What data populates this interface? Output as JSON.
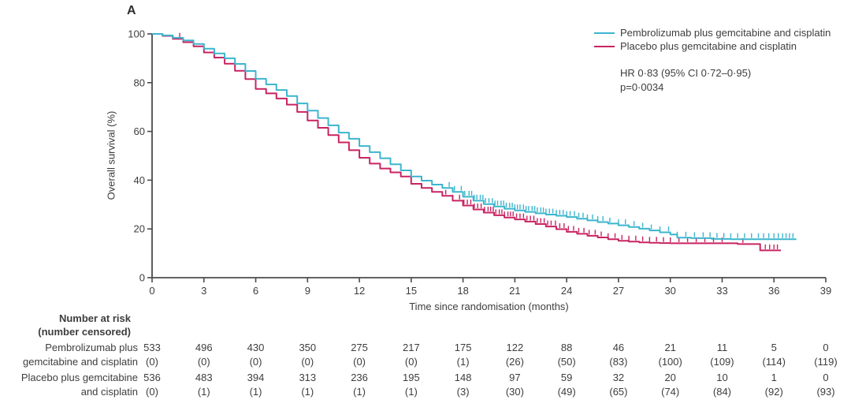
{
  "figure": {
    "panel_label": "A"
  },
  "chart_data": {
    "type": "line",
    "subtype": "kaplan-meier-step",
    "title": "",
    "xlabel": "Time since randomisation (months)",
    "ylabel": "Overall survival (%)",
    "xlim": [
      0,
      39
    ],
    "ylim": [
      0,
      100
    ],
    "xticks": [
      0,
      3,
      6,
      9,
      12,
      15,
      18,
      21,
      24,
      27,
      30,
      33,
      36,
      39
    ],
    "yticks": [
      0,
      20,
      40,
      60,
      80,
      100
    ],
    "grid": false,
    "legend_position": "top-right",
    "annotation": {
      "hr_text": "HR 0·83 (95% CI 0·72–0·95)",
      "p_text": "p=0·0034"
    },
    "series": [
      {
        "id": "pembrolizumab",
        "name": "Pembrolizumab plus gemcitabine and cisplatin",
        "color": "#3cb5ce",
        "points": [
          [
            0,
            100
          ],
          [
            0.6,
            99.4
          ],
          [
            1.2,
            98.4
          ],
          [
            1.8,
            97.3
          ],
          [
            2.4,
            95.9
          ],
          [
            3,
            93.9
          ],
          [
            3.6,
            92
          ],
          [
            4.2,
            90
          ],
          [
            4.8,
            87.7
          ],
          [
            5.4,
            84.8
          ],
          [
            6,
            81.6
          ],
          [
            6.6,
            79.3
          ],
          [
            7.2,
            77
          ],
          [
            7.8,
            74.5
          ],
          [
            8.4,
            71.5
          ],
          [
            9,
            68.5
          ],
          [
            9.6,
            65.5
          ],
          [
            10.2,
            62.5
          ],
          [
            10.8,
            59.5
          ],
          [
            11.4,
            57
          ],
          [
            12,
            54
          ],
          [
            12.6,
            51.5
          ],
          [
            13.2,
            49
          ],
          [
            13.8,
            46.5
          ],
          [
            14.4,
            44
          ],
          [
            15,
            41.5
          ],
          [
            15.6,
            39.8
          ],
          [
            16.2,
            38.2
          ],
          [
            16.8,
            36.8
          ],
          [
            17.4,
            35.2
          ],
          [
            18,
            33.2
          ],
          [
            18.6,
            31.6
          ],
          [
            19.2,
            30.2
          ],
          [
            19.8,
            29.2
          ],
          [
            20.4,
            28.3
          ],
          [
            21,
            27.6
          ],
          [
            21.6,
            27
          ],
          [
            22.2,
            26.4
          ],
          [
            22.8,
            25.9
          ],
          [
            23.4,
            25.4
          ],
          [
            24,
            24.9
          ],
          [
            24.6,
            24.2
          ],
          [
            25.2,
            23.5
          ],
          [
            25.8,
            22.8
          ],
          [
            26.4,
            22.2
          ],
          [
            27,
            21.5
          ],
          [
            27.6,
            20.8
          ],
          [
            28.2,
            20.1
          ],
          [
            28.8,
            19.4
          ],
          [
            29.4,
            18.6
          ],
          [
            30,
            17.7
          ],
          [
            30.4,
            16.4
          ],
          [
            31.2,
            16.2
          ],
          [
            32.4,
            15.9
          ],
          [
            33.5,
            15.8
          ],
          [
            37.3,
            15.8
          ]
        ],
        "censor_marks": [
          17.2,
          17.5,
          17.9,
          18.1,
          18.35,
          18.5,
          18.65,
          18.8,
          19.0,
          19.15,
          19.3,
          19.5,
          19.7,
          19.85,
          20.0,
          20.2,
          20.35,
          20.5,
          20.7,
          20.85,
          21.0,
          21.15,
          21.3,
          21.5,
          21.65,
          21.8,
          22.0,
          22.15,
          22.3,
          22.5,
          22.65,
          22.8,
          23.0,
          23.2,
          23.4,
          23.6,
          23.8,
          24.0,
          24.2,
          24.45,
          24.7,
          24.95,
          25.2,
          25.5,
          25.8,
          26.1,
          26.5,
          27.0,
          27.4,
          27.9,
          28.4,
          28.9,
          29.4,
          29.9,
          30.4,
          30.9,
          31.4,
          31.9,
          32.3,
          32.7,
          33.1,
          33.5,
          33.9,
          34.3,
          34.7,
          35.1,
          35.4,
          35.7,
          36.0,
          36.25,
          36.5,
          36.7,
          36.9,
          37.1
        ]
      },
      {
        "id": "placebo",
        "name": "Placebo plus gemcitabine and cisplatin",
        "color": "#c92361",
        "points": [
          [
            0,
            100
          ],
          [
            0.6,
            99.2
          ],
          [
            1.2,
            98
          ],
          [
            1.8,
            96.6
          ],
          [
            2.4,
            94.9
          ],
          [
            3,
            92.4
          ],
          [
            3.6,
            90.3
          ],
          [
            4.2,
            87.8
          ],
          [
            4.8,
            84.9
          ],
          [
            5.4,
            81.5
          ],
          [
            6,
            77.4
          ],
          [
            6.6,
            75.6
          ],
          [
            7.2,
            73.5
          ],
          [
            7.8,
            71
          ],
          [
            8.4,
            68
          ],
          [
            9,
            64.5
          ],
          [
            9.6,
            61.5
          ],
          [
            10.2,
            58.5
          ],
          [
            10.8,
            55.5
          ],
          [
            11.4,
            52.3
          ],
          [
            12,
            49.2
          ],
          [
            12.6,
            46.8
          ],
          [
            13.2,
            44.8
          ],
          [
            13.8,
            43.2
          ],
          [
            14.4,
            41.5
          ],
          [
            15,
            38.5
          ],
          [
            15.6,
            36.8
          ],
          [
            16.2,
            35.2
          ],
          [
            16.8,
            33.6
          ],
          [
            17.4,
            31.6
          ],
          [
            18,
            29.6
          ],
          [
            18.6,
            28
          ],
          [
            19.2,
            26.7
          ],
          [
            19.8,
            25.6
          ],
          [
            20.4,
            24.7
          ],
          [
            21,
            23.9
          ],
          [
            21.6,
            23
          ],
          [
            22.2,
            22
          ],
          [
            22.8,
            21
          ],
          [
            23.4,
            19.9
          ],
          [
            24,
            18.8
          ],
          [
            24.6,
            18
          ],
          [
            25.2,
            17.2
          ],
          [
            25.8,
            16.5
          ],
          [
            26.4,
            15.8
          ],
          [
            27,
            15.1
          ],
          [
            27.6,
            14.8
          ],
          [
            28.2,
            14.5
          ],
          [
            28.8,
            14.3
          ],
          [
            29.4,
            14.2
          ],
          [
            30,
            14.1
          ],
          [
            31.5,
            14.1
          ],
          [
            33.9,
            13.8
          ],
          [
            35.2,
            11.2
          ],
          [
            36.4,
            11.2
          ]
        ],
        "censor_marks": [
          1.6,
          17.0,
          17.4,
          17.8,
          18.05,
          18.25,
          18.45,
          18.65,
          18.85,
          19.05,
          19.25,
          19.45,
          19.6,
          19.75,
          19.9,
          20.1,
          20.25,
          20.4,
          20.6,
          20.75,
          20.9,
          21.1,
          21.3,
          21.5,
          21.7,
          21.9,
          22.1,
          22.3,
          22.5,
          22.7,
          22.9,
          23.1,
          23.35,
          23.6,
          23.85,
          24.1,
          24.4,
          24.7,
          25.0,
          25.3,
          25.65,
          26.0,
          26.4,
          26.8,
          27.2,
          27.6,
          28.0,
          28.4,
          28.8,
          29.2,
          29.6,
          30.0,
          30.5,
          31.0,
          31.5,
          32.0,
          32.5,
          33.0,
          34.2,
          35.5,
          35.75,
          36.0,
          36.2
        ]
      }
    ]
  },
  "risk_table": {
    "header_line1": "Number at risk",
    "header_line2": "(number censored)",
    "timepoints": [
      0,
      3,
      6,
      9,
      12,
      15,
      18,
      21,
      24,
      27,
      30,
      33,
      36,
      39
    ],
    "rows": [
      {
        "label_line1": "Pembrolizumab plus",
        "label_line2": "gemcitabine and cisplatin",
        "at_risk": [
          533,
          496,
          430,
          350,
          275,
          217,
          175,
          122,
          88,
          46,
          21,
          11,
          5,
          0
        ],
        "censored": [
          0,
          0,
          0,
          0,
          0,
          0,
          1,
          26,
          50,
          83,
          100,
          109,
          114,
          119
        ]
      },
      {
        "label_line1": "Placebo plus gemcitabine",
        "label_line2": "and cisplatin",
        "at_risk": [
          536,
          483,
          394,
          313,
          236,
          195,
          148,
          97,
          59,
          32,
          20,
          10,
          1,
          0
        ],
        "censored": [
          0,
          1,
          1,
          1,
          1,
          1,
          3,
          30,
          49,
          65,
          74,
          84,
          92,
          93
        ]
      }
    ]
  }
}
